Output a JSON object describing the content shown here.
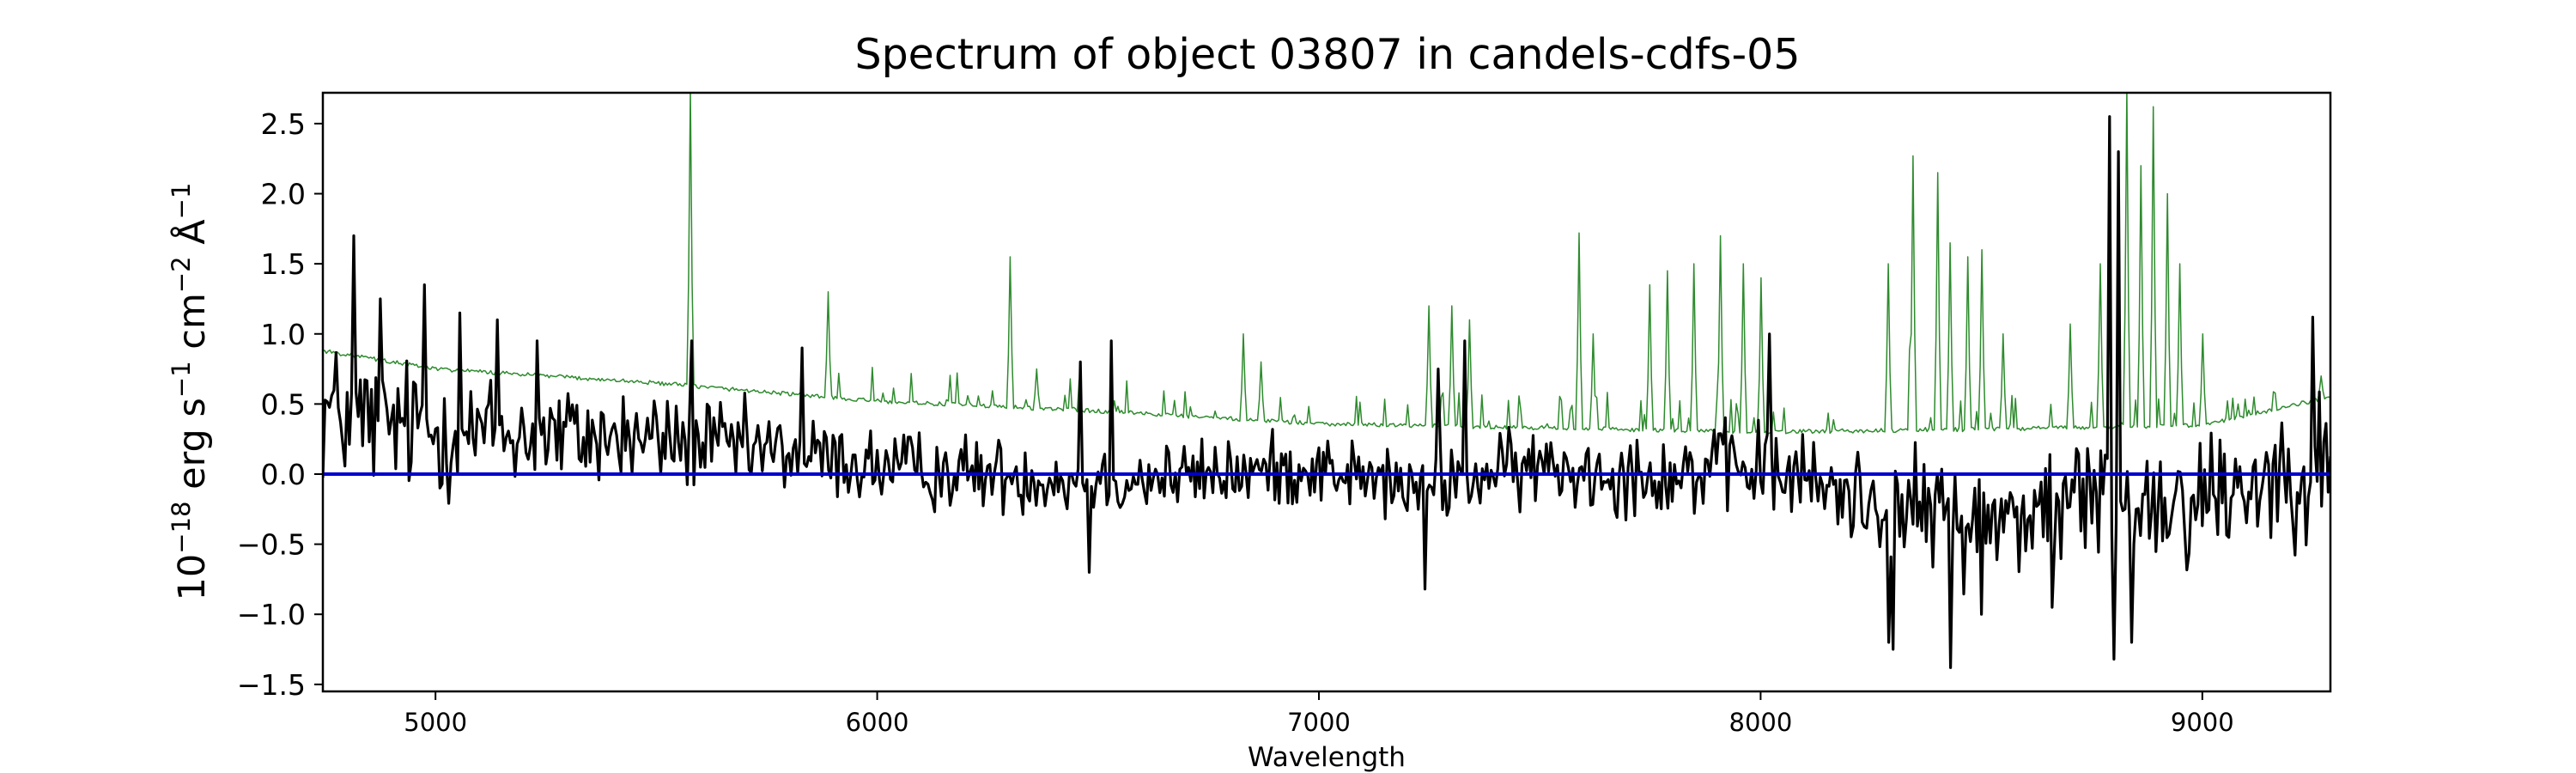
{
  "chart_data": {
    "type": "line",
    "title": "Spectrum of object 03807 in candels-cdfs-05",
    "xlabel": "Wavelength",
    "ylabel": {
      "prefix": "10",
      "exp1": "−18",
      "u1": " erg s",
      "exp2": "−1",
      "u2": " cm",
      "exp3": "−2",
      "u3": " Å",
      "exp4": "−1"
    },
    "xlim": [
      4745,
      9290
    ],
    "ylim": [
      -1.55,
      2.72
    ],
    "x_ticks": [
      5000,
      6000,
      7000,
      8000,
      9000
    ],
    "x_tick_labels": [
      "5000",
      "6000",
      "7000",
      "8000",
      "9000"
    ],
    "y_ticks": [
      -1.5,
      -1.0,
      -0.5,
      0.0,
      0.5,
      1.0,
      1.5,
      2.0,
      2.5
    ],
    "y_tick_labels": [
      "−1.5",
      "−1.0",
      "−0.5",
      "0.0",
      "0.5",
      "1.0",
      "1.5",
      "2.0",
      "2.5"
    ],
    "grid": false,
    "series": [
      {
        "role": "flux",
        "color": "#000000",
        "x_start": 4745,
        "x_end": 9290,
        "step": 5,
        "anchors": [
          [
            4745,
            0.45
          ],
          [
            5000,
            0.3
          ],
          [
            5500,
            0.25
          ],
          [
            5800,
            0.15
          ],
          [
            6000,
            0.05
          ],
          [
            6500,
            -0.05
          ],
          [
            6800,
            0.0
          ],
          [
            7000,
            0.05
          ],
          [
            7200,
            -0.1
          ],
          [
            7500,
            0.05
          ],
          [
            7800,
            0.0
          ],
          [
            8000,
            0.05
          ],
          [
            8200,
            -0.15
          ],
          [
            8500,
            -0.35
          ],
          [
            8700,
            -0.2
          ],
          [
            9000,
            -0.15
          ],
          [
            9290,
            0.1
          ]
        ],
        "noise": [
          [
            4745,
            0.45
          ],
          [
            5200,
            0.35
          ],
          [
            5800,
            0.25
          ],
          [
            6500,
            0.22
          ],
          [
            7200,
            0.22
          ],
          [
            7600,
            0.25
          ],
          [
            8200,
            0.3
          ],
          [
            8800,
            0.45
          ],
          [
            9290,
            0.4
          ]
        ],
        "features": [
          [
            4815,
            1.7
          ],
          [
            4875,
            1.25
          ],
          [
            4975,
            1.35
          ],
          [
            5055,
            1.15
          ],
          [
            5140,
            1.1
          ],
          [
            5230,
            0.95
          ],
          [
            5580,
            0.95
          ],
          [
            5830,
            0.9
          ],
          [
            6480,
            -0.7
          ],
          [
            6460,
            0.8
          ],
          [
            6530,
            0.95
          ],
          [
            7240,
            -0.82
          ],
          [
            7270,
            0.75
          ],
          [
            7330,
            0.95
          ],
          [
            8020,
            1.0
          ],
          [
            8290,
            -1.2
          ],
          [
            8300,
            -1.25
          ],
          [
            8430,
            -1.38
          ],
          [
            8500,
            -1.0
          ],
          [
            8660,
            -0.95
          ],
          [
            8790,
            2.55
          ],
          [
            8800,
            -1.32
          ],
          [
            8810,
            2.3
          ],
          [
            8840,
            -1.2
          ],
          [
            9250,
            1.12
          ]
        ]
      },
      {
        "role": "error",
        "color": "#2e8b2e",
        "x_start": 4745,
        "x_end": 9290,
        "step": 4,
        "anchors": [
          [
            4745,
            0.88
          ],
          [
            5000,
            0.75
          ],
          [
            5500,
            0.65
          ],
          [
            6000,
            0.52
          ],
          [
            6500,
            0.45
          ],
          [
            7000,
            0.36
          ],
          [
            7500,
            0.33
          ],
          [
            8000,
            0.3
          ],
          [
            8500,
            0.32
          ],
          [
            9000,
            0.35
          ],
          [
            9290,
            0.55
          ]
        ],
        "noise": [
          [
            4745,
            0.05
          ],
          [
            9290,
            0.05
          ]
        ],
        "features": [
          [
            5577,
            2.75
          ],
          [
            5890,
            1.3
          ],
          [
            6300,
            1.55
          ],
          [
            6363,
            0.75
          ],
          [
            6830,
            1.0
          ],
          [
            6870,
            0.8
          ],
          [
            7250,
            1.2
          ],
          [
            7300,
            1.2
          ],
          [
            7340,
            1.1
          ],
          [
            7590,
            1.72
          ],
          [
            7620,
            1.0
          ],
          [
            7750,
            1.35
          ],
          [
            7790,
            1.45
          ],
          [
            7850,
            1.5
          ],
          [
            7910,
            1.7
          ],
          [
            7960,
            1.5
          ],
          [
            8000,
            1.4
          ],
          [
            8290,
            1.5
          ],
          [
            8340,
            1.95
          ],
          [
            8345,
            2.27
          ],
          [
            8400,
            2.15
          ],
          [
            8430,
            1.65
          ],
          [
            8470,
            1.55
          ],
          [
            8500,
            1.6
          ],
          [
            8550,
            1.0
          ],
          [
            8700,
            1.07
          ],
          [
            8770,
            1.5
          ],
          [
            8830,
            2.75
          ],
          [
            8860,
            2.2
          ],
          [
            8890,
            2.62
          ],
          [
            8920,
            2.0
          ],
          [
            8950,
            1.5
          ],
          [
            9000,
            1.0
          ],
          [
            9270,
            0.7
          ]
        ]
      },
      {
        "role": "zero",
        "color": "#0000cd",
        "x": [
          4745,
          9290
        ],
        "y": [
          0,
          0
        ]
      }
    ]
  }
}
